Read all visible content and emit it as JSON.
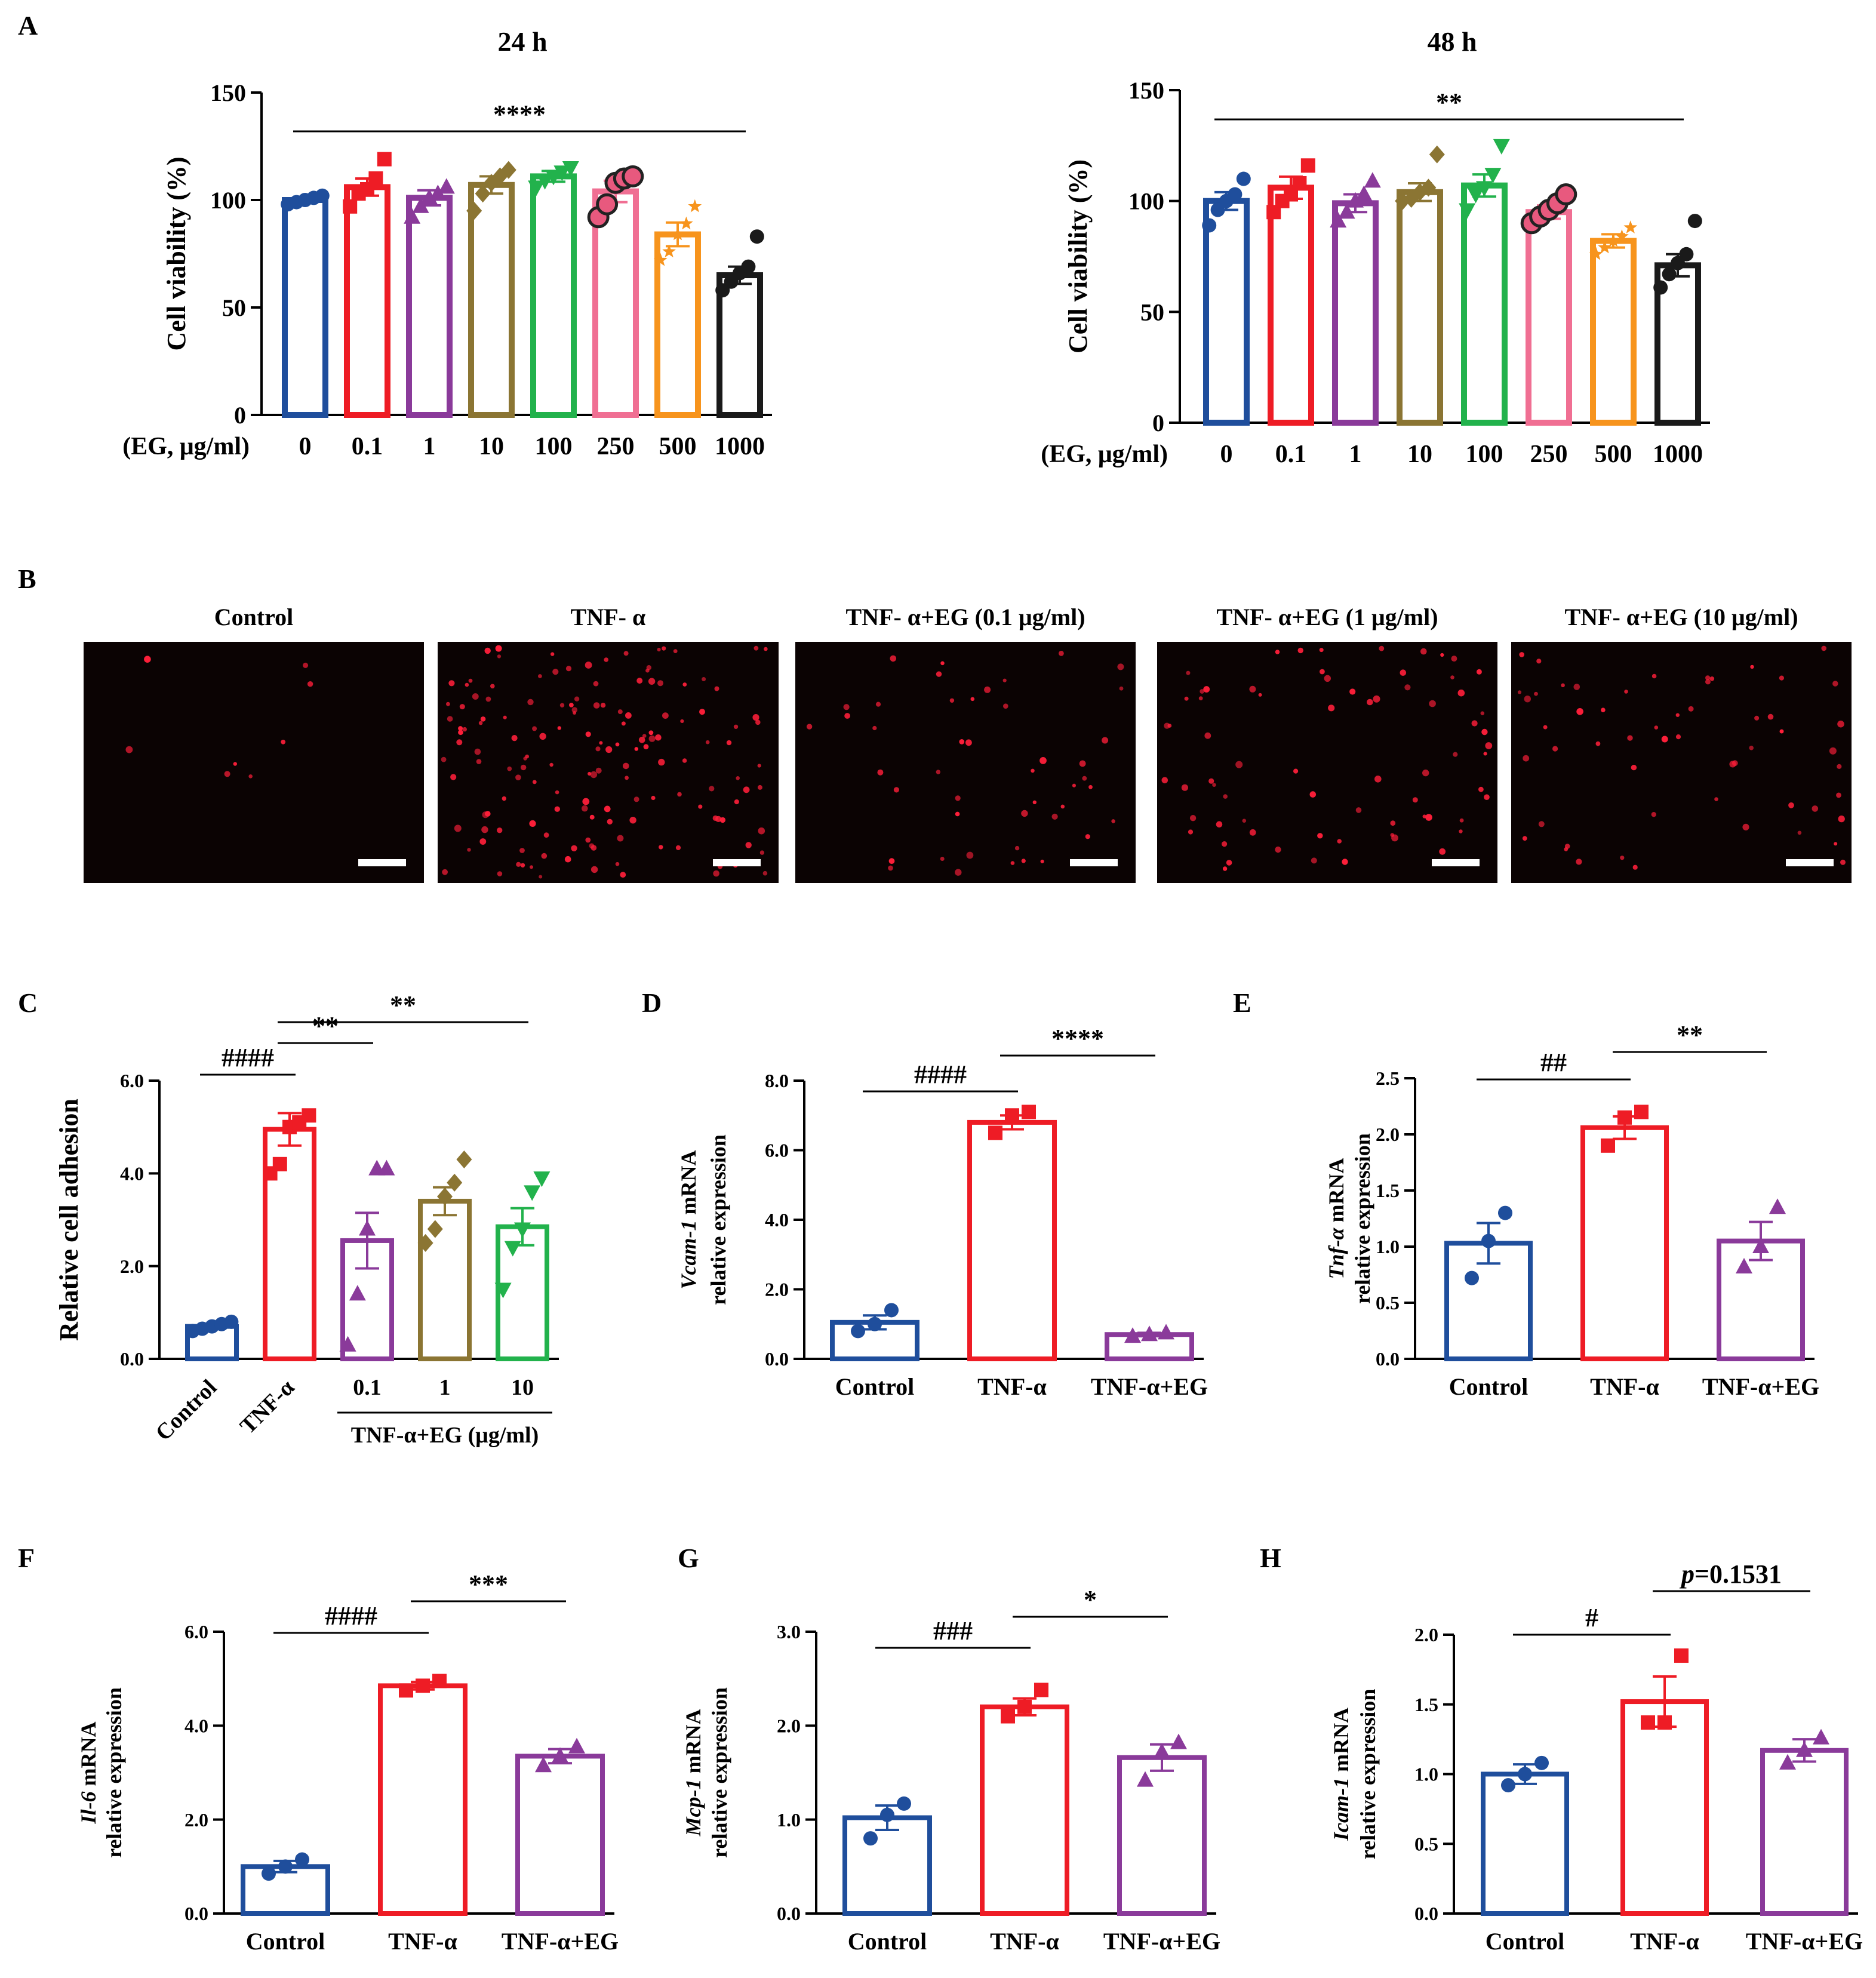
{
  "colors": {
    "blue": "#1f4e9c",
    "red": "#ee1c25",
    "purple": "#8a3a9a",
    "olive": "#8b7533",
    "green": "#22b24c",
    "pink": "#f06f93",
    "orange": "#f7941d",
    "black": "#1a1a1a"
  },
  "panel_b": {
    "letter": "B",
    "images": [
      {
        "title": "Control",
        "dots": 8
      },
      {
        "title": "TNF- α",
        "dots": 150
      },
      {
        "title": "TNF- α+EG (0.1 μg/ml)",
        "dots": 45
      },
      {
        "title": "TNF- α+EG (1 μg/ml)",
        "dots": 70
      },
      {
        "title": "TNF- α+EG (10 μg/ml)",
        "dots": 55
      }
    ]
  },
  "chart_data": [
    {
      "id": "A1",
      "letter": "A",
      "type": "bar",
      "title": "24 h",
      "ylabel": "Cell viability (%)",
      "xlabel": "(EG, μg/ml)",
      "ylim": [
        0,
        150
      ],
      "yticks": [
        0,
        50,
        100,
        150
      ],
      "categories": [
        "0",
        "0.1",
        "1",
        "10",
        "100",
        "250",
        "500",
        "1000"
      ],
      "values": [
        100,
        106,
        101,
        107,
        111,
        104,
        84,
        65
      ],
      "errors": [
        1.5,
        4,
        3.5,
        4,
        2.5,
        5,
        5.5,
        4
      ],
      "points": [
        [
          98,
          99,
          100,
          101,
          102
        ],
        [
          97,
          103,
          105,
          110,
          119
        ],
        [
          92,
          97,
          101,
          103,
          106
        ],
        [
          95,
          103,
          108,
          111,
          114
        ],
        [
          106,
          109,
          111,
          113,
          115
        ],
        [
          92,
          98,
          108,
          110,
          111
        ],
        [
          72,
          76,
          84,
          89,
          97
        ],
        [
          58,
          62,
          66,
          69,
          83
        ]
      ],
      "colors": [
        "blue",
        "red",
        "purple",
        "olive",
        "green",
        "pink",
        "orange",
        "black"
      ],
      "markers": [
        "circle",
        "square",
        "triangle",
        "diamond",
        "triangle-down",
        "circle-large",
        "star",
        "circle"
      ],
      "brackets": [
        {
          "from": 0,
          "to": 7,
          "label": "****"
        }
      ]
    },
    {
      "id": "A2",
      "type": "bar",
      "title": "48 h",
      "ylabel": "Cell viability (%)",
      "xlabel": "(EG, μg/ml)",
      "ylim": [
        0,
        150
      ],
      "yticks": [
        0,
        50,
        100,
        150
      ],
      "categories": [
        "0",
        "0.1",
        "1",
        "10",
        "100",
        "250",
        "500",
        "1000"
      ],
      "values": [
        100,
        106,
        99,
        104,
        107,
        95,
        82,
        71
      ],
      "errors": [
        4,
        5,
        4,
        4,
        5,
        3,
        3,
        5
      ],
      "points": [
        [
          89,
          96,
          100,
          103,
          110
        ],
        [
          95,
          100,
          103,
          108,
          116
        ],
        [
          91,
          95,
          100,
          103,
          109
        ],
        [
          100,
          101,
          104,
          106,
          121
        ],
        [
          96,
          103,
          106,
          112,
          125
        ],
        [
          90,
          93,
          96,
          99,
          103
        ],
        [
          76,
          79,
          82,
          84,
          88
        ],
        [
          61,
          67,
          72,
          76,
          91
        ]
      ],
      "colors": [
        "blue",
        "red",
        "purple",
        "olive",
        "green",
        "pink",
        "orange",
        "black"
      ],
      "markers": [
        "circle",
        "square",
        "triangle",
        "diamond",
        "triangle-down",
        "circle-large",
        "star",
        "circle"
      ],
      "brackets": [
        {
          "from": 0,
          "to": 7,
          "label": "**"
        }
      ]
    },
    {
      "id": "C",
      "letter": "C",
      "type": "bar",
      "ylabel": "Relative cell adhesion",
      "ylim": [
        0,
        6
      ],
      "yticks": [
        0,
        2,
        4,
        6
      ],
      "ytick_labels": [
        "0.0",
        "2.0",
        "4.0",
        "6.0"
      ],
      "categories": [
        "Control",
        "TNF-α",
        "0.1",
        "1",
        "10"
      ],
      "rotated": [
        true,
        true,
        false,
        false,
        false
      ],
      "group_label": "TNF-α+EG (μg/ml)",
      "values": [
        0.7,
        4.95,
        2.55,
        3.4,
        2.85
      ],
      "errors": [
        0.05,
        0.35,
        0.6,
        0.3,
        0.4
      ],
      "points": [
        [
          0.6,
          0.65,
          0.7,
          0.75,
          0.8
        ],
        [
          4.0,
          4.2,
          5.0,
          5.1,
          5.25
        ],
        [
          0.3,
          1.4,
          2.8,
          4.1,
          4.1
        ],
        [
          2.5,
          2.8,
          3.5,
          3.8,
          4.3
        ],
        [
          1.5,
          2.4,
          2.8,
          3.6,
          3.9
        ]
      ],
      "colors": [
        "blue",
        "red",
        "purple",
        "olive",
        "green"
      ],
      "markers": [
        "circle",
        "square",
        "triangle",
        "diamond",
        "triangle-down"
      ],
      "brackets": [
        {
          "from": 0,
          "to": 1,
          "label": "####"
        },
        {
          "from": 1,
          "to": 2,
          "label": "**"
        },
        {
          "from": 1,
          "to": 4,
          "label": "**"
        }
      ]
    },
    {
      "id": "D",
      "letter": "D",
      "type": "bar",
      "ylabel_italic": "Vcam-1",
      "ylabel_rest": " mRNA",
      "ylabel2": "relative expression",
      "ylim": [
        0,
        8
      ],
      "yticks": [
        0,
        2,
        4,
        6,
        8
      ],
      "ytick_labels": [
        "0.0",
        "2.0",
        "4.0",
        "6.0",
        "8.0"
      ],
      "categories": [
        "Control",
        "TNF-α",
        "TNF-α+EG"
      ],
      "values": [
        1.05,
        6.8,
        0.7
      ],
      "errors": [
        0.2,
        0.2,
        0.05
      ],
      "points": [
        [
          0.8,
          1.0,
          1.4
        ],
        [
          6.5,
          7.0,
          7.1
        ],
        [
          0.65,
          0.7,
          0.75
        ]
      ],
      "colors": [
        "blue",
        "red",
        "purple"
      ],
      "markers": [
        "circle",
        "square",
        "triangle"
      ],
      "brackets": [
        {
          "from": 0,
          "to": 1,
          "label": "####"
        },
        {
          "from": 1,
          "to": 2,
          "label": "****"
        }
      ]
    },
    {
      "id": "E",
      "letter": "E",
      "type": "bar",
      "ylabel_italic": "Tnf-α",
      "ylabel_rest": " mRNA",
      "ylabel2": "relative expression",
      "ylim": [
        0,
        2.5
      ],
      "yticks": [
        0,
        0.5,
        1,
        1.5,
        2,
        2.5
      ],
      "ytick_labels": [
        "0.0",
        "0.5",
        "1.0",
        "1.5",
        "2.0",
        "2.5"
      ],
      "categories": [
        "Control",
        "TNF-α",
        "TNF-α+EG"
      ],
      "values": [
        1.03,
        2.06,
        1.05
      ],
      "errors": [
        0.18,
        0.1,
        0.17
      ],
      "points": [
        [
          0.72,
          1.05,
          1.3
        ],
        [
          1.9,
          2.15,
          2.2
        ],
        [
          0.82,
          1.0,
          1.35
        ]
      ],
      "colors": [
        "blue",
        "red",
        "purple"
      ],
      "markers": [
        "circle",
        "square",
        "triangle"
      ],
      "brackets": [
        {
          "from": 0,
          "to": 1,
          "label": "##"
        },
        {
          "from": 1,
          "to": 2,
          "label": "**"
        }
      ]
    },
    {
      "id": "F",
      "letter": "F",
      "type": "bar",
      "ylabel_italic": "Il-6",
      "ylabel_rest": " mRNA",
      "ylabel2": "relative expression",
      "ylim": [
        0,
        6
      ],
      "yticks": [
        0,
        2,
        4,
        6
      ],
      "ytick_labels": [
        "0.0",
        "2.0",
        "4.0",
        "6.0"
      ],
      "categories": [
        "Control",
        "TNF-α",
        "TNF-α+EG"
      ],
      "values": [
        1.0,
        4.85,
        3.35
      ],
      "errors": [
        0.12,
        0.08,
        0.15
      ],
      "points": [
        [
          0.85,
          1.0,
          1.15
        ],
        [
          4.75,
          4.85,
          4.95
        ],
        [
          3.15,
          3.35,
          3.55
        ]
      ],
      "colors": [
        "blue",
        "red",
        "purple"
      ],
      "markers": [
        "circle",
        "square",
        "triangle"
      ],
      "brackets": [
        {
          "from": 0,
          "to": 1,
          "label": "####"
        },
        {
          "from": 1,
          "to": 2,
          "label": "***"
        }
      ]
    },
    {
      "id": "G",
      "letter": "G",
      "type": "bar",
      "ylabel_italic": "Mcp-1",
      "ylabel_rest": " mRNA",
      "ylabel2": "relative expression",
      "ylim": [
        0,
        3
      ],
      "yticks": [
        0,
        1,
        2,
        3
      ],
      "ytick_labels": [
        "0.0",
        "1.0",
        "2.0",
        "3.0"
      ],
      "categories": [
        "Control",
        "TNF-α",
        "TNF-α+EG"
      ],
      "values": [
        1.02,
        2.2,
        1.66
      ],
      "errors": [
        0.13,
        0.09,
        0.14
      ],
      "points": [
        [
          0.8,
          1.05,
          1.17
        ],
        [
          2.1,
          2.2,
          2.38
        ],
        [
          1.42,
          1.72,
          1.82
        ]
      ],
      "colors": [
        "blue",
        "red",
        "purple"
      ],
      "markers": [
        "circle",
        "square",
        "triangle"
      ],
      "brackets": [
        {
          "from": 0,
          "to": 1,
          "label": "###"
        },
        {
          "from": 1,
          "to": 2,
          "label": "*"
        }
      ]
    },
    {
      "id": "H",
      "letter": "H",
      "type": "bar",
      "ylabel_italic": "Icam-1",
      "ylabel_rest": " mRNA",
      "ylabel2": "relative expression",
      "ylim": [
        0,
        2
      ],
      "yticks": [
        0,
        0.5,
        1,
        1.5,
        2
      ],
      "ytick_labels": [
        "0.0",
        "0.5",
        "1.0",
        "1.5",
        "2.0"
      ],
      "categories": [
        "Control",
        "TNF-α",
        "TNF-α+EG"
      ],
      "values": [
        1.0,
        1.52,
        1.17
      ],
      "errors": [
        0.07,
        0.18,
        0.08
      ],
      "points": [
        [
          0.92,
          1.0,
          1.08
        ],
        [
          1.37,
          1.37,
          1.85
        ],
        [
          1.08,
          1.17,
          1.26
        ]
      ],
      "colors": [
        "blue",
        "red",
        "purple"
      ],
      "markers": [
        "circle",
        "square",
        "triangle"
      ],
      "brackets": [
        {
          "from": 0,
          "to": 1,
          "label": "#"
        },
        {
          "from": 1,
          "to": 2,
          "label_italic": "p",
          "label": "=0.1531"
        }
      ]
    }
  ]
}
